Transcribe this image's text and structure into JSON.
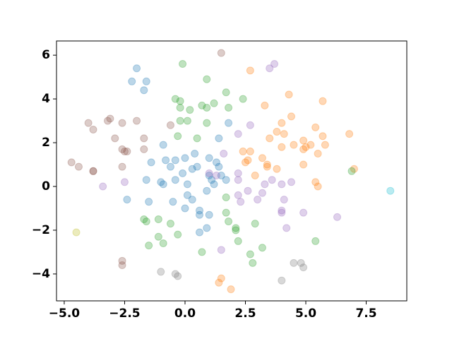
{
  "chart_data": {
    "type": "scatter",
    "xlim": [
      -5.32,
      9.18
    ],
    "ylim": [
      -5.23,
      6.65
    ],
    "xticks": [
      {
        "value": -5,
        "label": "−5.0"
      },
      {
        "value": -2.5,
        "label": "−2.5"
      },
      {
        "value": 0,
        "label": "0.0"
      },
      2.5,
      {
        "value": 5,
        "label": "5.0"
      },
      7.5
    ],
    "yticks": [
      {
        "value": -4,
        "label": "−4"
      },
      {
        "value": -2,
        "label": "−2"
      },
      0,
      2,
      4,
      6
    ],
    "grid": false,
    "opacity": 0.3,
    "series": [
      {
        "color": "#1f77b4",
        "x": [
          -2.0,
          -2.2,
          -1.6,
          -1.7,
          -0.9,
          -1.4,
          -1.6,
          -2.4,
          -1.5,
          -1.0,
          -0.9,
          -0.8,
          -0.6,
          -0.4,
          -0.4,
          -0.1,
          0,
          0.1,
          0,
          -0.5,
          0.4,
          0.3,
          0.5,
          0.1,
          0.3,
          0.6,
          0.6,
          0.9,
          1.0,
          1.3,
          1.0,
          1.1,
          0.9,
          1.2,
          1.4,
          1.8,
          1.4,
          1.5,
          1.7,
          1.0,
          0.6
        ],
        "values": [
          5.4,
          4.8,
          4.8,
          4.4,
          1.9,
          1.1,
          0.3,
          -0.6,
          -0.7,
          0.2,
          0.1,
          1.2,
          0.9,
          1.2,
          0.3,
          0.6,
          1.3,
          0.1,
          -1.0,
          -0.7,
          1.5,
          0.8,
          0.9,
          -0.4,
          -0.6,
          -1.1,
          -2.1,
          -1.9,
          1.3,
          1.1,
          0.5,
          0.3,
          -0.2,
          0.1,
          2.2,
          2.9,
          0.9,
          0.5,
          0.3,
          -1.3,
          -1.3
        ]
      },
      {
        "color": "#ff7f0e",
        "x": [
          2.7,
          4.3,
          3.3,
          4.4,
          5.7,
          4.0,
          3.8,
          3.5,
          4.1,
          5.4,
          5.7,
          6.8,
          4.5,
          4.9,
          5.0,
          5.2,
          4.9,
          5.8,
          5.5,
          4.0,
          2.4,
          2.5,
          2.6,
          3.2,
          3.4,
          3.8,
          4.9,
          2.9,
          5.4,
          5.5,
          7.0,
          1.5,
          1.4,
          1.9,
          3.4,
          2.7
        ],
        "values": [
          5.3,
          4.2,
          3.7,
          3.2,
          3.9,
          2.9,
          2.5,
          2.2,
          2.4,
          2.7,
          2.3,
          2.4,
          1.9,
          1.7,
          1.8,
          1.9,
          2.1,
          1.9,
          1.5,
          1.8,
          1.6,
          1.1,
          1.2,
          1.3,
          1.0,
          0.8,
          1.0,
          0.5,
          0.2,
          0.0,
          0.8,
          -4.2,
          -4.4,
          -4.7,
          0.9,
          1.6
        ]
      },
      {
        "color": "#2ca02c",
        "x": [
          -0.1,
          0.9,
          -0.4,
          -0.2,
          -0.2,
          0.2,
          0.7,
          0.9,
          1.2,
          1.7,
          2.4,
          1.8,
          -0.2,
          0.1,
          0.9,
          -0.3,
          0.5,
          1.7,
          1.7,
          1.8,
          2.1,
          2.2,
          2.9,
          3.2,
          2.7,
          2.8,
          0.7,
          -0.3,
          -1.1,
          -0.9,
          -1.5,
          -1.7,
          -1.6,
          -1.1,
          -0.6,
          5.4,
          6.9,
          2.1
        ],
        "values": [
          5.6,
          4.9,
          4.0,
          3.9,
          3.6,
          3.5,
          3.7,
          3.6,
          3.8,
          4.3,
          4.0,
          3.6,
          3.0,
          3.0,
          2.9,
          2.3,
          2.2,
          -0.5,
          -1.2,
          -1.6,
          -1.9,
          -2.5,
          -1.7,
          -2.8,
          -3.1,
          -3.5,
          -3.0,
          -2.2,
          -2.3,
          -2.6,
          -2.7,
          -1.5,
          -1.6,
          -1.5,
          -1.7,
          -2.5,
          0.7,
          -2.0
        ]
      },
      {
        "color": "#9467bd",
        "x": [
          3.7,
          3.5,
          2.7,
          2.2,
          1.6,
          2.2,
          2.2,
          2.2,
          2.3,
          2.6,
          3.2,
          3.3,
          3.0,
          3.6,
          4.0,
          4.4,
          4.1,
          4.0,
          4.0,
          4.9,
          6.3,
          4.2,
          1.5,
          -2.5,
          -3.4,
          1.3,
          1.0
        ],
        "values": [
          5.6,
          5.4,
          2.8,
          2.4,
          1.5,
          0.6,
          0.3,
          -0.4,
          -0.7,
          -0.2,
          -0.3,
          0.1,
          -0.6,
          0.3,
          0.1,
          0.2,
          -0.6,
          -1.1,
          -1.2,
          -1.2,
          -1.4,
          -1.9,
          -2.9,
          0.2,
          0.0,
          0.5,
          0.6
        ]
      },
      {
        "color": "#8c564b",
        "x": [
          1.5,
          -2.6,
          -3.1,
          -3.2,
          -4.0,
          -3.8,
          -2.9,
          -2.0,
          -1.7,
          -1.7,
          -2.6,
          -2.5,
          -0.6,
          -2.6,
          -4.7,
          -4.4,
          -3.8,
          -3.8,
          -2.6,
          -2.6,
          -2.4
        ],
        "values": [
          6.1,
          2.9,
          3.1,
          3.0,
          2.9,
          2.6,
          2.2,
          3.0,
          2.2,
          1.7,
          1.7,
          1.6,
          2.8,
          0.9,
          1.1,
          0.9,
          0.7,
          0.7,
          -3.4,
          -3.6,
          1.6
        ]
      },
      {
        "color": "#7f7f7f",
        "x": [
          -1.0,
          -0.4,
          -0.3,
          4.0,
          4.5,
          4.8,
          4.9
        ],
        "values": [
          -3.9,
          -4.0,
          -4.1,
          -4.3,
          -3.5,
          -3.5,
          -3.7
        ]
      },
      {
        "color": "#bcbd22",
        "x": [
          -4.5
        ],
        "values": [
          -2.1
        ]
      },
      {
        "color": "#17becf",
        "x": [
          8.5
        ],
        "values": [
          -0.2
        ]
      }
    ]
  }
}
